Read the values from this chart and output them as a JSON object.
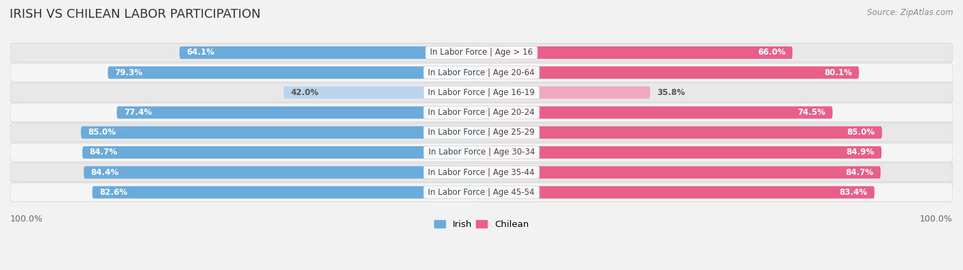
{
  "title": "IRISH VS CHILEAN LABOR PARTICIPATION",
  "source": "Source: ZipAtlas.com",
  "categories": [
    "In Labor Force | Age > 16",
    "In Labor Force | Age 20-64",
    "In Labor Force | Age 16-19",
    "In Labor Force | Age 20-24",
    "In Labor Force | Age 25-29",
    "In Labor Force | Age 30-34",
    "In Labor Force | Age 35-44",
    "In Labor Force | Age 45-54"
  ],
  "irish_values": [
    64.1,
    79.3,
    42.0,
    77.4,
    85.0,
    84.7,
    84.4,
    82.6
  ],
  "chilean_values": [
    66.0,
    80.1,
    35.8,
    74.5,
    85.0,
    84.9,
    84.7,
    83.4
  ],
  "irish_color": "#6aabdb",
  "irish_light_color": "#b8d5ed",
  "chilean_color": "#e8608a",
  "chilean_light_color": "#f0a8c0",
  "bar_height": 0.62,
  "background_color": "#f2f2f2",
  "row_bg_even": "#e8e8e8",
  "row_bg_odd": "#f5f5f5",
  "label_fontsize": 8.5,
  "title_fontsize": 13,
  "source_fontsize": 8.5,
  "max_value": 100.0,
  "threshold_light": 60
}
